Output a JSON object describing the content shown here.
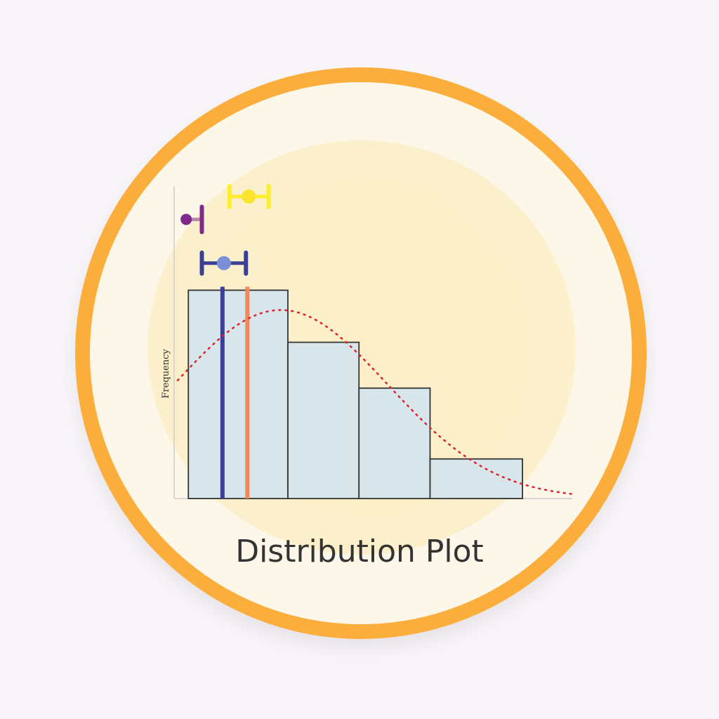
{
  "chart_data": {
    "type": "bar",
    "title": "Distribution Plot",
    "ylabel": "Frequency",
    "xlabel": "",
    "bin_edges": [
      0,
      1.4,
      2.4,
      3.4,
      4.7
    ],
    "values": [
      10,
      7.5,
      5.3,
      1.9
    ],
    "xlim": [
      -0.2,
      5.4
    ],
    "ylim": [
      0,
      15
    ],
    "grid": false,
    "bar_color": "#d8e5ea",
    "vlines": [
      {
        "x": 0.48,
        "color": "#3b3f98"
      },
      {
        "x": 0.83,
        "color": "#f08a5d"
      }
    ],
    "error_bars": [
      {
        "center": 0.5,
        "low": 0.19,
        "high": 0.81,
        "y": 11.3,
        "color": "#3b3f98",
        "point_color": "#7b8fd8"
      },
      {
        "center": 0.85,
        "low": 0.58,
        "high": 1.13,
        "y": 14.5,
        "color": "#fbee2c",
        "point_color": "#fbe52c"
      },
      {
        "center": -0.03,
        "low": -0.03,
        "high": 0.19,
        "y": 13.4,
        "color": "#7d2a8c",
        "point_color": "#7d2a8c"
      }
    ],
    "density_curve": {
      "type": "normal",
      "peak": 9.05,
      "mean": 1.3,
      "sd": 1.5,
      "color": "#e0202a",
      "style": "dotted"
    }
  },
  "colors": {
    "ring": "#fcae3c",
    "background": "#fdf7ea"
  }
}
